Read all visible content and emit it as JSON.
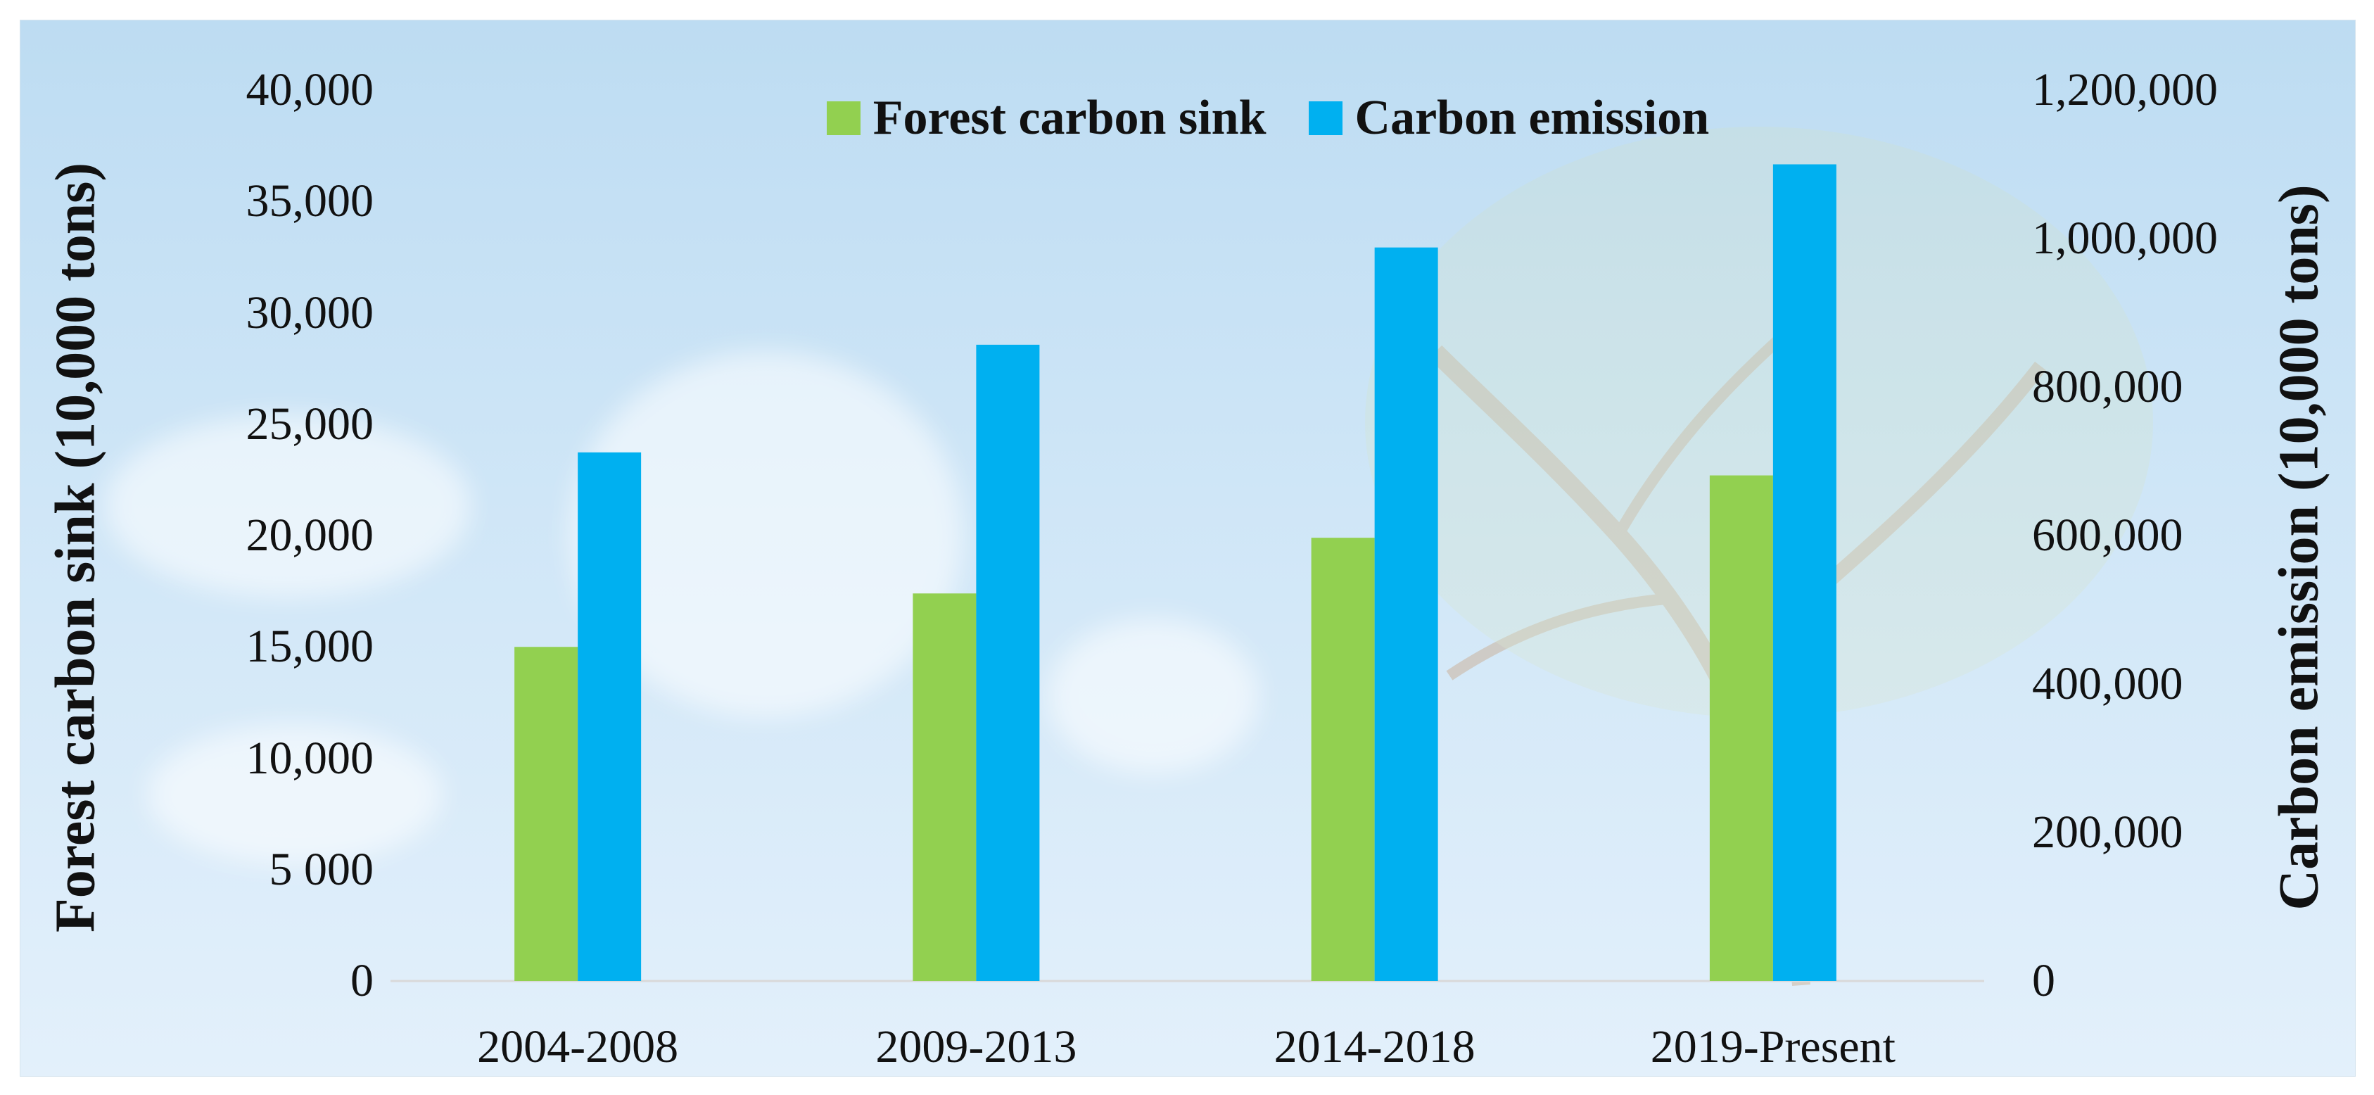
{
  "colors": {
    "sink": "#92d050",
    "emission": "#00b0f0",
    "background_top": "#bddcf2",
    "tree": "#c8a88a"
  },
  "legend": {
    "sink_label": "Forest carbon sink",
    "emission_label": "Carbon emission"
  },
  "chart_data": {
    "type": "bar",
    "categories": [
      "2004-2008",
      "2009-2013",
      "2014-2018",
      "2019-Present"
    ],
    "series": [
      {
        "name": "Forest carbon sink",
        "axis": "left",
        "values": [
          15000,
          17400,
          19900,
          22700
        ]
      },
      {
        "name": "Carbon emission",
        "axis": "right",
        "values": [
          712000,
          857000,
          988000,
          1100000
        ]
      }
    ],
    "ylabel_left": "Forest carbon sink (10,000 tons)",
    "ylabel_right": "Carbon emission (10,000 tons)",
    "ylim_left": [
      0,
      40000
    ],
    "ylim_right": [
      0,
      1200000
    ],
    "yticks_left": [
      "0",
      "5 000",
      "10,000",
      "15,000",
      "20,000",
      "25,000",
      "30,000",
      "35,000",
      "40,000"
    ],
    "yticks_right": [
      "0",
      "200,000",
      "400,000",
      "600,000",
      "800,000",
      "1,000,000",
      "1,200,000"
    ],
    "grid": false,
    "legend_position": "top-center"
  }
}
